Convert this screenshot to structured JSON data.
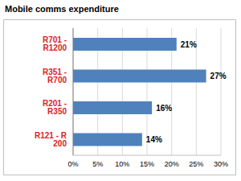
{
  "chart_data": {
    "type": "bar",
    "title": "Mobile comms expenditure",
    "orientation": "horizontal",
    "categories": [
      "R701 - R1200",
      "R351 - R700",
      "R201 - R350",
      "R121 - R 200"
    ],
    "values": [
      21,
      27,
      16,
      14
    ],
    "value_labels": [
      "21%",
      "27%",
      "16%",
      "14%"
    ],
    "data_labels": true,
    "color": "#4f81bd",
    "xlim": [
      0,
      30
    ],
    "xticks": [
      {
        "value": 0,
        "label": "0%"
      },
      {
        "value": 5,
        "label": "5%"
      },
      {
        "value": 10,
        "label": "10%"
      },
      {
        "value": 15,
        "label": "15%"
      },
      {
        "value": 20,
        "label": "20%"
      },
      {
        "value": 25,
        "label": "25%"
      },
      {
        "value": 30,
        "label": "30%"
      }
    ],
    "grid": true
  }
}
